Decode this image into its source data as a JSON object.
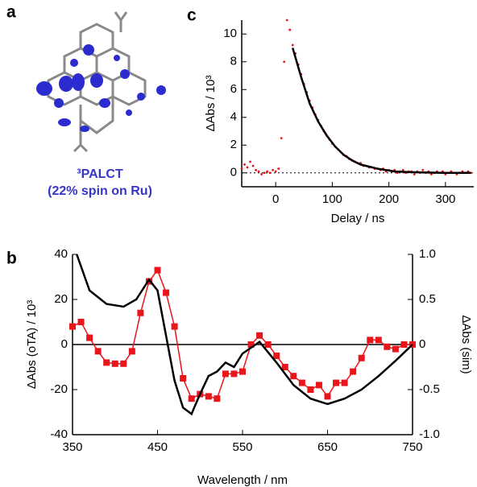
{
  "panel_a": {
    "label": "a",
    "caption": [
      "³PALCT",
      "(22% spin on Ru)"
    ]
  },
  "chart_data": [
    {
      "type": "line",
      "panel_label": "c",
      "y_label": "ΔAbs / 10³",
      "x_label": "Delay / ns",
      "xlim": [
        -60,
        350
      ],
      "xticks": [
        0,
        100,
        200,
        300
      ],
      "ylim": [
        -1,
        11
      ],
      "yticks": [
        0,
        2,
        4,
        6,
        8,
        10
      ],
      "reference_line": 0,
      "reference_dashed": true,
      "series": [
        {
          "style": "dots",
          "color": "#e8151b",
          "x": [
            -60,
            -55,
            -50,
            -45,
            -40,
            -35,
            -30,
            -25,
            -20,
            -15,
            -10,
            -5,
            0,
            5,
            10,
            15,
            20,
            25,
            30,
            35,
            40,
            45,
            50,
            55,
            60,
            65,
            70,
            75,
            80,
            85,
            90,
            95,
            100,
            105,
            110,
            115,
            120,
            125,
            130,
            135,
            140,
            145,
            150,
            155,
            160,
            165,
            170,
            175,
            180,
            185,
            190,
            195,
            200,
            205,
            210,
            215,
            220,
            225,
            230,
            235,
            240,
            245,
            250,
            255,
            260,
            265,
            270,
            275,
            280,
            285,
            290,
            295,
            300,
            305,
            310,
            315,
            320,
            325,
            330,
            335,
            340,
            345
          ],
          "values": [
            0.3,
            0.6,
            0.4,
            0.8,
            0.5,
            0.2,
            0.1,
            -0.1,
            0.0,
            0.1,
            0.0,
            0.2,
            0.1,
            0.3,
            2.5,
            8.0,
            11.0,
            10.3,
            9.2,
            8.6,
            7.8,
            7.1,
            6.4,
            5.8,
            5.2,
            4.7,
            4.2,
            3.8,
            3.4,
            3.0,
            2.7,
            2.4,
            2.1,
            1.9,
            1.7,
            1.5,
            1.3,
            1.2,
            1.0,
            0.9,
            0.8,
            0.7,
            0.7,
            0.5,
            0.5,
            0.4,
            0.4,
            0.3,
            0.3,
            0.2,
            0.3,
            0.1,
            0.2,
            0.1,
            0.2,
            0.0,
            0.1,
            0.2,
            0.0,
            0.1,
            0.1,
            -0.1,
            0.1,
            0.0,
            0.2,
            0.0,
            0.1,
            -0.1,
            0.0,
            0.1,
            0.0,
            0.1,
            -0.1,
            0.0,
            0.1,
            0.0,
            -0.1,
            0.0,
            0.1,
            0.0,
            0.1,
            0.0
          ]
        },
        {
          "style": "line",
          "color": "#000000",
          "x": [
            30,
            45,
            60,
            75,
            90,
            105,
            120,
            135,
            150,
            180,
            210,
            240,
            270,
            300,
            345
          ],
          "values": [
            9.0,
            6.9,
            5.0,
            3.7,
            2.7,
            1.9,
            1.3,
            0.9,
            0.6,
            0.3,
            0.1,
            0.05,
            0.02,
            0.0,
            0.0
          ]
        }
      ]
    },
    {
      "type": "line",
      "panel_label": "b",
      "y_label": "ΔAbs (oTA) / 10³",
      "y2_label": "ΔAbs (sim)",
      "x_label": "Wavelength / nm",
      "xlim": [
        350,
        750
      ],
      "xticks": [
        350,
        450,
        550,
        650,
        750
      ],
      "ylim": [
        -40,
        40
      ],
      "yticks": [
        -40,
        -20,
        0,
        20,
        40
      ],
      "y2lim": [
        -1,
        1
      ],
      "y2ticks": [
        {
          "value": -1,
          "label": "-1.0"
        },
        -0.5,
        0,
        0.5,
        {
          "value": 1,
          "label": "1.0"
        }
      ],
      "reference_line": 0,
      "reference_dashed": false,
      "series": [
        {
          "style": "line-markers",
          "color": "#e8151b",
          "x": [
            350,
            360,
            370,
            380,
            390,
            400,
            410,
            420,
            430,
            440,
            450,
            460,
            470,
            480,
            490,
            500,
            510,
            520,
            530,
            540,
            550,
            560,
            570,
            580,
            590,
            600,
            610,
            620,
            630,
            640,
            650,
            660,
            670,
            680,
            690,
            700,
            710,
            720,
            730,
            740,
            750
          ],
          "values": [
            8,
            10,
            3,
            -3,
            -8,
            -8.5,
            -8.5,
            -3,
            14,
            28,
            33,
            23,
            8,
            -15,
            -24,
            -22,
            -23,
            -24,
            -13,
            -13,
            -12,
            0,
            4,
            0,
            -5,
            -10,
            -14,
            -17,
            -20,
            -18,
            -23,
            -17,
            -17,
            -12,
            -6,
            2,
            2,
            -1,
            -2,
            0,
            0
          ]
        },
        {
          "style": "line",
          "color": "#000000",
          "axis": "y2",
          "x": [
            355,
            370,
            390,
            410,
            425,
            440,
            450,
            460,
            470,
            480,
            490,
            500,
            510,
            520,
            530,
            540,
            550,
            570,
            590,
            610,
            630,
            650,
            670,
            690,
            710,
            730,
            750
          ],
          "values": [
            1.0,
            0.6,
            0.45,
            0.42,
            0.5,
            0.72,
            0.6,
            0.1,
            -0.4,
            -0.7,
            -0.77,
            -0.55,
            -0.35,
            -0.3,
            -0.2,
            -0.25,
            -0.1,
            0.03,
            -0.2,
            -0.45,
            -0.6,
            -0.66,
            -0.6,
            -0.5,
            -0.35,
            -0.18,
            0.0
          ]
        }
      ]
    }
  ]
}
